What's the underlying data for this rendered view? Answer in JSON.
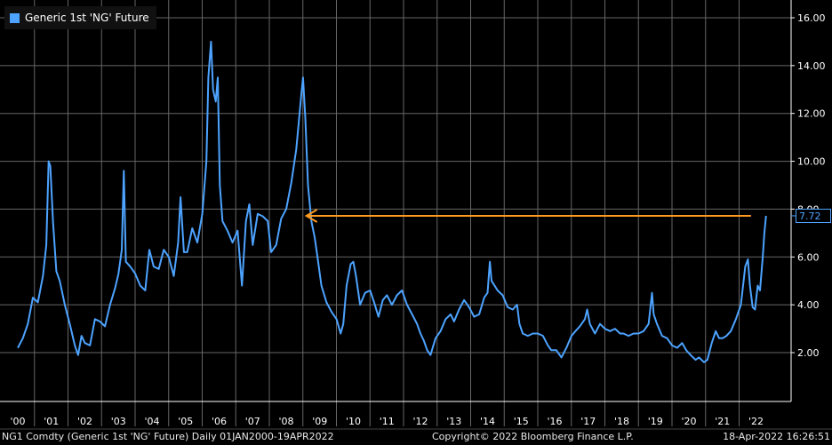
{
  "legend": {
    "label": "Generic 1st 'NG' Future",
    "color": "#4da3ff"
  },
  "footer": {
    "ticker": "NG1 Comdty (Generic 1st 'NG' Future)  Daily 01JAN2000-19APR2022",
    "copyright": "Copyright© 2022 Bloomberg Finance L.P.",
    "timestamp": "18-Apr-2022 16:26:51"
  },
  "last_value_label": "7.72",
  "colors": {
    "series": "#4da3ff",
    "arrow": "#ff9a1f",
    "grid": "#666666",
    "background": "#000000"
  },
  "chart_data": {
    "type": "line",
    "title": "",
    "xlabel": "",
    "ylabel": "",
    "ylim": [
      0.5,
      16.5
    ],
    "xlim": [
      2000.0,
      2022.3
    ],
    "y_ticks": [
      "2.00",
      "4.00",
      "6.00",
      "8.00",
      "10.00",
      "12.00",
      "14.00",
      "16.00"
    ],
    "x_ticks": [
      "'00",
      "'01",
      "'02",
      "'03",
      "'04",
      "'05",
      "'06",
      "'07",
      "'08",
      "'09",
      "'10",
      "'11",
      "'12",
      "'13",
      "'14",
      "'15",
      "'16",
      "'17",
      "'18",
      "'19",
      "'20",
      "'21",
      "'22"
    ],
    "grid": true,
    "y_axis_side": "right",
    "legend_position": "top-left",
    "annotation": {
      "type": "arrow",
      "from_year": 2021.85,
      "to_year": 2008.6,
      "value": 7.72
    },
    "last_value": 7.72,
    "series": [
      {
        "name": "Generic 1st 'NG' Future",
        "points": [
          [
            2000.0,
            2.2
          ],
          [
            2000.15,
            2.6
          ],
          [
            2000.3,
            3.2
          ],
          [
            2000.45,
            4.3
          ],
          [
            2000.6,
            4.1
          ],
          [
            2000.75,
            5.2
          ],
          [
            2000.85,
            6.5
          ],
          [
            2000.92,
            10.0
          ],
          [
            2000.97,
            9.8
          ],
          [
            2001.05,
            7.5
          ],
          [
            2001.15,
            5.4
          ],
          [
            2001.25,
            5.0
          ],
          [
            2001.4,
            4.0
          ],
          [
            2001.55,
            3.2
          ],
          [
            2001.7,
            2.3
          ],
          [
            2001.8,
            1.9
          ],
          [
            2001.9,
            2.7
          ],
          [
            2002.0,
            2.4
          ],
          [
            2002.15,
            2.3
          ],
          [
            2002.3,
            3.4
          ],
          [
            2002.45,
            3.3
          ],
          [
            2002.6,
            3.1
          ],
          [
            2002.75,
            4.0
          ],
          [
            2002.9,
            4.7
          ],
          [
            2003.0,
            5.3
          ],
          [
            2003.1,
            6.3
          ],
          [
            2003.16,
            9.6
          ],
          [
            2003.22,
            5.8
          ],
          [
            2003.35,
            5.6
          ],
          [
            2003.5,
            5.3
          ],
          [
            2003.65,
            4.8
          ],
          [
            2003.8,
            4.6
          ],
          [
            2003.92,
            6.3
          ],
          [
            2004.05,
            5.6
          ],
          [
            2004.2,
            5.5
          ],
          [
            2004.35,
            6.3
          ],
          [
            2004.5,
            6.0
          ],
          [
            2004.65,
            5.2
          ],
          [
            2004.78,
            6.6
          ],
          [
            2004.85,
            8.5
          ],
          [
            2004.95,
            6.2
          ],
          [
            2005.05,
            6.2
          ],
          [
            2005.2,
            7.2
          ],
          [
            2005.35,
            6.6
          ],
          [
            2005.5,
            7.8
          ],
          [
            2005.62,
            10.0
          ],
          [
            2005.68,
            13.5
          ],
          [
            2005.76,
            15.0
          ],
          [
            2005.82,
            13.0
          ],
          [
            2005.9,
            12.5
          ],
          [
            2005.96,
            13.5
          ],
          [
            2006.02,
            9.0
          ],
          [
            2006.1,
            7.5
          ],
          [
            2006.25,
            7.1
          ],
          [
            2006.4,
            6.6
          ],
          [
            2006.55,
            7.1
          ],
          [
            2006.68,
            4.8
          ],
          [
            2006.8,
            7.5
          ],
          [
            2006.9,
            8.2
          ],
          [
            2007.0,
            6.5
          ],
          [
            2007.15,
            7.8
          ],
          [
            2007.3,
            7.7
          ],
          [
            2007.45,
            7.5
          ],
          [
            2007.55,
            6.2
          ],
          [
            2007.7,
            6.5
          ],
          [
            2007.85,
            7.6
          ],
          [
            2008.0,
            8.0
          ],
          [
            2008.15,
            9.1
          ],
          [
            2008.3,
            10.5
          ],
          [
            2008.45,
            12.8
          ],
          [
            2008.5,
            13.5
          ],
          [
            2008.57,
            11.8
          ],
          [
            2008.65,
            9.0
          ],
          [
            2008.75,
            7.5
          ],
          [
            2008.85,
            6.8
          ],
          [
            2008.95,
            5.8
          ],
          [
            2009.05,
            4.8
          ],
          [
            2009.2,
            4.1
          ],
          [
            2009.35,
            3.7
          ],
          [
            2009.5,
            3.4
          ],
          [
            2009.62,
            2.8
          ],
          [
            2009.7,
            3.2
          ],
          [
            2009.8,
            4.8
          ],
          [
            2009.92,
            5.7
          ],
          [
            2010.0,
            5.8
          ],
          [
            2010.08,
            5.2
          ],
          [
            2010.2,
            4.0
          ],
          [
            2010.35,
            4.5
          ],
          [
            2010.5,
            4.6
          ],
          [
            2010.62,
            4.1
          ],
          [
            2010.75,
            3.5
          ],
          [
            2010.88,
            4.2
          ],
          [
            2011.0,
            4.4
          ],
          [
            2011.15,
            4.0
          ],
          [
            2011.3,
            4.4
          ],
          [
            2011.45,
            4.6
          ],
          [
            2011.6,
            4.0
          ],
          [
            2011.75,
            3.6
          ],
          [
            2011.9,
            3.2
          ],
          [
            2012.0,
            2.8
          ],
          [
            2012.1,
            2.5
          ],
          [
            2012.2,
            2.1
          ],
          [
            2012.3,
            1.9
          ],
          [
            2012.45,
            2.6
          ],
          [
            2012.6,
            2.9
          ],
          [
            2012.75,
            3.4
          ],
          [
            2012.9,
            3.6
          ],
          [
            2013.0,
            3.3
          ],
          [
            2013.15,
            3.8
          ],
          [
            2013.3,
            4.2
          ],
          [
            2013.45,
            3.9
          ],
          [
            2013.6,
            3.5
          ],
          [
            2013.75,
            3.6
          ],
          [
            2013.9,
            4.3
          ],
          [
            2014.0,
            4.5
          ],
          [
            2014.07,
            5.8
          ],
          [
            2014.12,
            5.0
          ],
          [
            2014.3,
            4.6
          ],
          [
            2014.45,
            4.4
          ],
          [
            2014.6,
            3.9
          ],
          [
            2014.75,
            3.8
          ],
          [
            2014.88,
            4.0
          ],
          [
            2014.95,
            3.2
          ],
          [
            2015.05,
            2.8
          ],
          [
            2015.2,
            2.7
          ],
          [
            2015.35,
            2.8
          ],
          [
            2015.5,
            2.8
          ],
          [
            2015.65,
            2.7
          ],
          [
            2015.8,
            2.3
          ],
          [
            2015.9,
            2.1
          ],
          [
            2016.05,
            2.1
          ],
          [
            2016.2,
            1.8
          ],
          [
            2016.35,
            2.2
          ],
          [
            2016.5,
            2.7
          ],
          [
            2016.62,
            2.9
          ],
          [
            2016.75,
            3.1
          ],
          [
            2016.9,
            3.4
          ],
          [
            2016.97,
            3.8
          ],
          [
            2017.05,
            3.2
          ],
          [
            2017.2,
            2.8
          ],
          [
            2017.35,
            3.2
          ],
          [
            2017.5,
            3.0
          ],
          [
            2017.65,
            2.9
          ],
          [
            2017.8,
            3.0
          ],
          [
            2017.95,
            2.8
          ],
          [
            2018.05,
            2.8
          ],
          [
            2018.2,
            2.7
          ],
          [
            2018.35,
            2.8
          ],
          [
            2018.5,
            2.8
          ],
          [
            2018.65,
            2.9
          ],
          [
            2018.8,
            3.2
          ],
          [
            2018.9,
            4.5
          ],
          [
            2018.95,
            3.6
          ],
          [
            2019.05,
            3.2
          ],
          [
            2019.2,
            2.7
          ],
          [
            2019.35,
            2.6
          ],
          [
            2019.5,
            2.3
          ],
          [
            2019.65,
            2.2
          ],
          [
            2019.8,
            2.4
          ],
          [
            2019.92,
            2.1
          ],
          [
            2020.05,
            1.9
          ],
          [
            2020.2,
            1.7
          ],
          [
            2020.3,
            1.8
          ],
          [
            2020.45,
            1.6
          ],
          [
            2020.55,
            1.7
          ],
          [
            2020.68,
            2.4
          ],
          [
            2020.8,
            2.9
          ],
          [
            2020.9,
            2.6
          ],
          [
            2021.0,
            2.6
          ],
          [
            2021.12,
            2.7
          ],
          [
            2021.25,
            2.9
          ],
          [
            2021.4,
            3.4
          ],
          [
            2021.55,
            4.0
          ],
          [
            2021.68,
            5.6
          ],
          [
            2021.76,
            5.9
          ],
          [
            2021.82,
            4.8
          ],
          [
            2021.9,
            3.9
          ],
          [
            2021.97,
            3.8
          ],
          [
            2022.05,
            4.8
          ],
          [
            2022.12,
            4.6
          ],
          [
            2022.2,
            6.0
          ],
          [
            2022.25,
            7.0
          ],
          [
            2022.3,
            7.72
          ]
        ]
      }
    ]
  }
}
